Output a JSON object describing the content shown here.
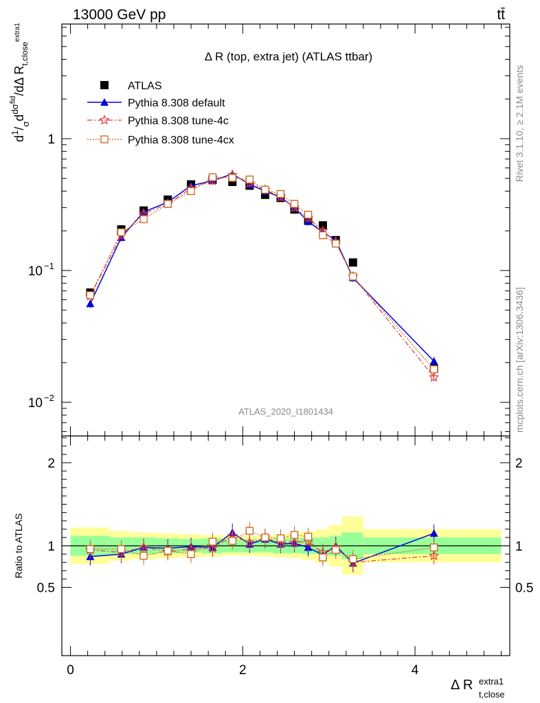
{
  "header": {
    "energy_label": "13000 GeV pp",
    "process_label": "tt̄"
  },
  "side_labels": {
    "rivet": "Rivet 3.1.10, ≥ 2.1M events",
    "source": "mcplots.cern.ch [arXiv:1306.3436]"
  },
  "chart_data": [
    {
      "type": "scatter",
      "panel": "main",
      "title": "Δ R (top, extra jet) (ATLAS ttbar)",
      "analysis_label": "ATLAS_2020_I1801434",
      "ylabel": "dσ / dΔR  (1/σ, normalized, t,close extra1)",
      "xlabel": "Δ R t,close extra1",
      "y_scale": "log",
      "xlim": [
        -0.1,
        5.1
      ],
      "ylim": [
        0.0055,
        7
      ],
      "y_ticks": [
        "1",
        "10^-1",
        "10^-2"
      ],
      "x_ticks": [
        "0",
        "2",
        "4"
      ],
      "legend_position": "top-left",
      "x": [
        0.23,
        0.59,
        0.85,
        1.13,
        1.4,
        1.65,
        1.88,
        2.08,
        2.26,
        2.44,
        2.6,
        2.76,
        2.93,
        3.08,
        3.28,
        4.22
      ],
      "series": [
        {
          "name": "ATLAS",
          "marker": "square",
          "color": "#000000",
          "values": [
            0.068,
            0.205,
            0.285,
            0.345,
            0.45,
            0.49,
            0.47,
            0.44,
            0.375,
            0.355,
            0.29,
            0.24,
            0.22,
            0.17,
            0.115,
            0.018
          ]
        },
        {
          "name": "Pythia 8.308 default",
          "marker": "triangle",
          "color": "#0000dd",
          "values": [
            0.056,
            0.178,
            0.278,
            0.33,
            0.44,
            0.48,
            0.54,
            0.45,
            0.4,
            0.36,
            0.3,
            0.235,
            0.195,
            0.17,
            0.088,
            0.0205
          ]
        },
        {
          "name": "Pythia 8.308 tune-4c",
          "marker": "star",
          "color": "#e03a3a",
          "values": [
            0.064,
            0.185,
            0.27,
            0.32,
            0.42,
            0.48,
            0.53,
            0.46,
            0.41,
            0.36,
            0.3,
            0.25,
            0.2,
            0.165,
            0.09,
            0.0155
          ]
        },
        {
          "name": "Pythia 8.308 tune-4cx",
          "marker": "open-square",
          "color": "#c8641e",
          "values": [
            0.065,
            0.195,
            0.245,
            0.32,
            0.4,
            0.51,
            0.505,
            0.49,
            0.41,
            0.38,
            0.32,
            0.265,
            0.185,
            0.16,
            0.09,
            0.0178
          ]
        }
      ]
    },
    {
      "type": "line",
      "panel": "ratio",
      "ylabel": "Ratio to ATLAS",
      "xlabel": "Δ R t,close extra1",
      "xlim": [
        -0.1,
        5.1
      ],
      "ylim": [
        0.4,
        2.4
      ],
      "y_ticks": [
        "0.5",
        "1",
        "2"
      ],
      "x_ticks": [
        "0",
        "2",
        "4"
      ],
      "bin_edges": [
        0.0,
        0.45,
        0.7,
        1.0,
        1.27,
        1.52,
        1.76,
        1.98,
        2.17,
        2.35,
        2.52,
        2.68,
        2.84,
        3.0,
        3.15,
        3.4,
        5.0
      ],
      "band_stat_halfwidth": [
        0.12,
        0.1,
        0.1,
        0.09,
        0.08,
        0.09,
        0.08,
        0.08,
        0.08,
        0.09,
        0.09,
        0.1,
        0.1,
        0.12,
        0.16,
        0.1
      ],
      "band_total_halfwidth": [
        0.22,
        0.18,
        0.16,
        0.15,
        0.14,
        0.13,
        0.12,
        0.12,
        0.13,
        0.14,
        0.15,
        0.17,
        0.2,
        0.25,
        0.35,
        0.2
      ],
      "x": [
        0.23,
        0.59,
        0.85,
        1.13,
        1.4,
        1.65,
        1.88,
        2.08,
        2.26,
        2.44,
        2.6,
        2.76,
        2.93,
        3.08,
        3.28,
        4.22
      ],
      "series": [
        {
          "name": "Pythia 8.308 default",
          "color": "#0000dd",
          "values": [
            0.87,
            0.9,
            0.98,
            0.97,
            0.99,
            0.98,
            1.16,
            1.02,
            1.08,
            1.02,
            1.03,
            0.98,
            0.89,
            1.0,
            0.79,
            1.15
          ]
        },
        {
          "name": "Pythia 8.308 tune-4c",
          "color": "#e03a3a",
          "values": [
            0.95,
            0.92,
            0.98,
            0.93,
            0.96,
            0.97,
            1.12,
            1.04,
            1.1,
            1.03,
            1.04,
            1.05,
            0.92,
            0.98,
            0.8,
            0.88
          ]
        },
        {
          "name": "Pythia 8.308 tune-4cx",
          "color": "#c8641e",
          "values": [
            0.96,
            0.96,
            0.88,
            0.94,
            0.9,
            1.05,
            1.06,
            1.18,
            1.1,
            1.09,
            1.13,
            1.11,
            0.86,
            0.95,
            0.84,
            0.98
          ]
        }
      ]
    }
  ]
}
